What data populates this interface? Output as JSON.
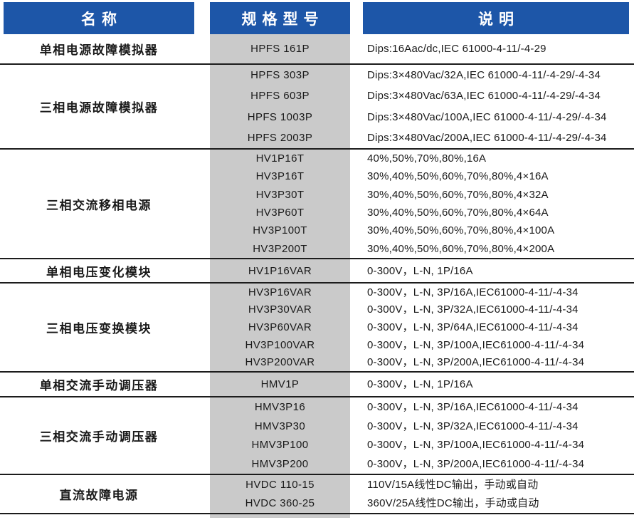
{
  "colors": {
    "header_blue": "#1d56a8",
    "model_column_gray": "#cacaca",
    "separator_line": "#1c1c1c",
    "header_text": "#ffffff",
    "body_text": "#1a1a1a"
  },
  "header": {
    "columns": [
      {
        "label": "名称"
      },
      {
        "label": "规格型号"
      },
      {
        "label": "说明"
      }
    ]
  },
  "groups": [
    {
      "name": "单相电源故障模拟器",
      "rows": [
        {
          "model": "HPFS 161P",
          "desc": "Dips:16Aac/dc,IEC 61000-4-11/-4-29"
        }
      ]
    },
    {
      "name": "三相电源故障模拟器",
      "rows": [
        {
          "model": "HPFS 303P",
          "desc": "Dips:3×480Vac/32A,IEC 61000-4-11/-4-29/-4-34"
        },
        {
          "model": "HPFS 603P",
          "desc": "Dips:3×480Vac/63A,IEC 61000-4-11/-4-29/-4-34"
        },
        {
          "model": "HPFS 1003P",
          "desc": "Dips:3×480Vac/100A,IEC 61000-4-11/-4-29/-4-34"
        },
        {
          "model": "HPFS 2003P",
          "desc": "Dips:3×480Vac/200A,IEC 61000-4-11/-4-29/-4-34"
        }
      ]
    },
    {
      "name": "三相交流移相电源",
      "rows": [
        {
          "model": "HV1P16T",
          "desc": "40%,50%,70%,80%,16A"
        },
        {
          "model": "HV3P16T",
          "desc": "30%,40%,50%,60%,70%,80%,4×16A"
        },
        {
          "model": "HV3P30T",
          "desc": "30%,40%,50%,60%,70%,80%,4×32A"
        },
        {
          "model": "HV3P60T",
          "desc": "30%,40%,50%,60%,70%,80%,4×64A"
        },
        {
          "model": "HV3P100T",
          "desc": "30%,40%,50%,60%,70%,80%,4×100A"
        },
        {
          "model": "HV3P200T",
          "desc": "30%,40%,50%,60%,70%,80%,4×200A"
        }
      ]
    },
    {
      "name": "单相电压变化模块",
      "rows": [
        {
          "model": "HV1P16VAR",
          "desc": "0-300V，L-N, 1P/16A"
        }
      ]
    },
    {
      "name": "三相电压变换模块",
      "rows": [
        {
          "model": "HV3P16VAR",
          "desc": "0-300V，L-N, 3P/16A,IEC61000-4-11/-4-34"
        },
        {
          "model": "HV3P30VAR",
          "desc": "0-300V，L-N, 3P/32A,IEC61000-4-11/-4-34"
        },
        {
          "model": "HV3P60VAR",
          "desc": "0-300V，L-N, 3P/64A,IEC61000-4-11/-4-34"
        },
        {
          "model": "HV3P100VAR",
          "desc": "0-300V，L-N, 3P/100A,IEC61000-4-11/-4-34"
        },
        {
          "model": "HV3P200VAR",
          "desc": "0-300V，L-N, 3P/200A,IEC61000-4-11/-4-34"
        }
      ]
    },
    {
      "name": "单相交流手动调压器",
      "rows": [
        {
          "model": "HMV1P",
          "desc": "0-300V，L-N, 1P/16A"
        }
      ]
    },
    {
      "name": "三相交流手动调压器",
      "rows": [
        {
          "model": "HMV3P16",
          "desc": "0-300V，L-N, 3P/16A,IEC61000-4-11/-4-34"
        },
        {
          "model": "HMV3P30",
          "desc": "0-300V，L-N, 3P/32A,IEC61000-4-11/-4-34"
        },
        {
          "model": "HMV3P100",
          "desc": "0-300V，L-N, 3P/100A,IEC61000-4-11/-4-34"
        },
        {
          "model": "HMV3P200",
          "desc": "0-300V，L-N, 3P/200A,IEC61000-4-11/-4-34"
        }
      ]
    },
    {
      "name": "直流故障电源",
      "rows": [
        {
          "model": "HVDC 110-15",
          "desc": "110V/15A线性DC输出，手动或自动"
        },
        {
          "model": "HVDC 360-25",
          "desc": "360V/25A线性DC输出，手动或自动"
        }
      ]
    }
  ]
}
